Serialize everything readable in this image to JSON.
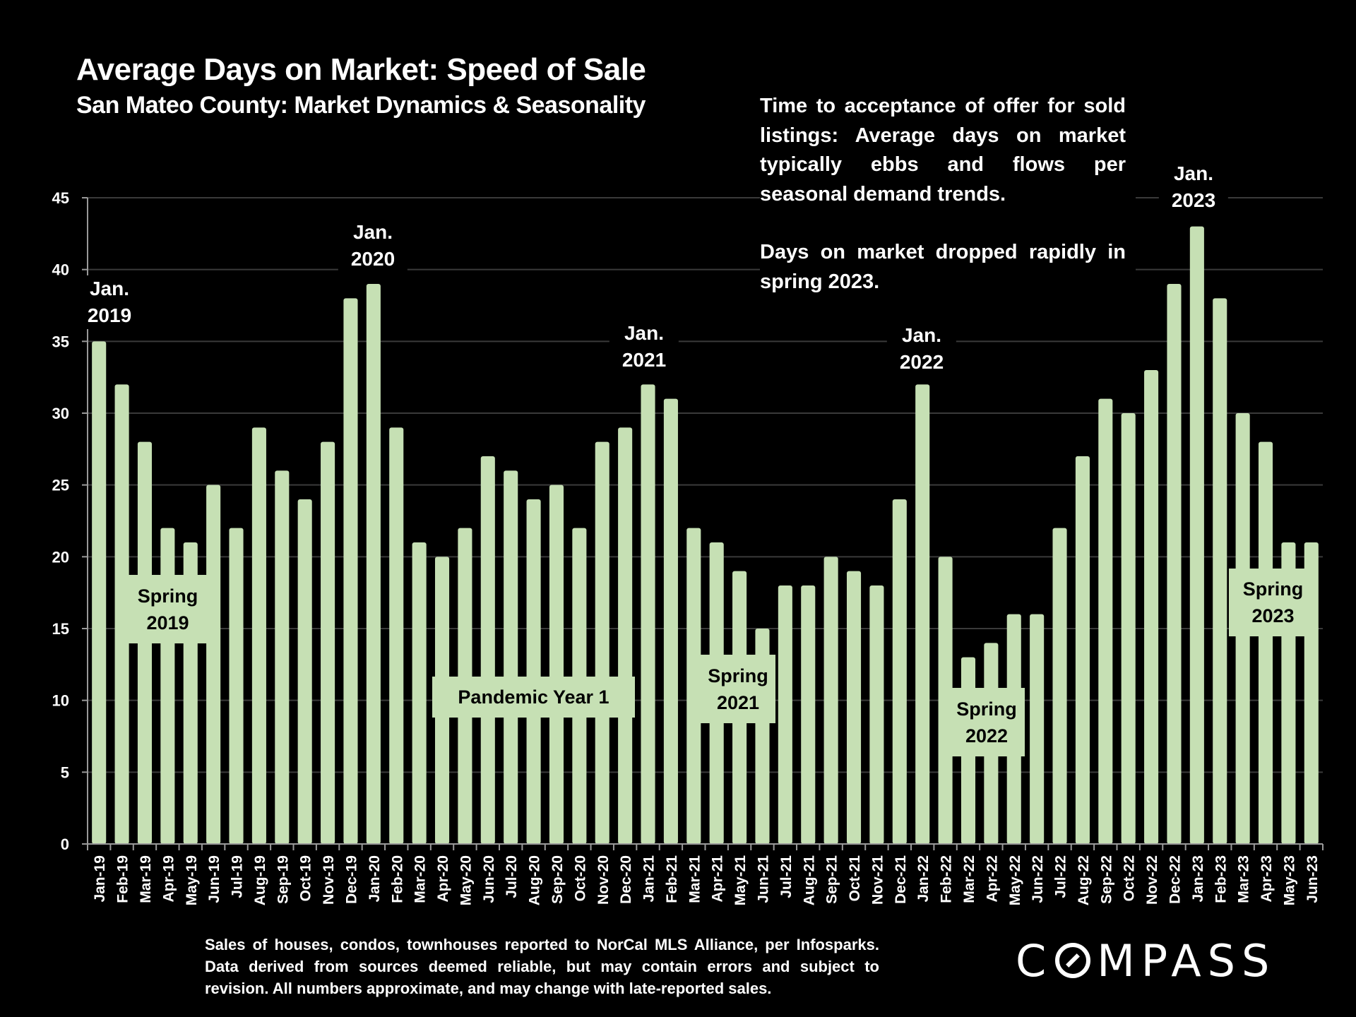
{
  "header": {
    "title": "Average Days on Market:  Speed of Sale",
    "subtitle": "San Mateo County: Market Dynamics & Seasonality"
  },
  "description": {
    "paragraph_1": "Time to acceptance of offer for sold listings: Average days on market typically ebbs and flows per seasonal demand trends.",
    "paragraph_2": "Days on market dropped rapidly in spring 2023."
  },
  "annotations": {
    "jan_2019": {
      "line1": "Jan.",
      "line2": "2019"
    },
    "jan_2020": {
      "line1": "Jan.",
      "line2": "2020"
    },
    "jan_2021": {
      "line1": "Jan.",
      "line2": "2021"
    },
    "jan_2022": {
      "line1": "Jan.",
      "line2": "2022"
    },
    "jan_2023": {
      "line1": "Jan.",
      "line2": "2023"
    },
    "spring_2019": {
      "line1": "Spring",
      "line2": "2019"
    },
    "pandemic_year_1": {
      "line1": "Pandemic Year 1"
    },
    "spring_2021": {
      "line1": "Spring",
      "line2": "2021"
    },
    "spring_2022": {
      "line1": "Spring",
      "line2": "2022"
    },
    "spring_2023": {
      "line1": "Spring",
      "line2": "2023"
    }
  },
  "footer": {
    "line1": "Sales of houses, condos, townhouses reported to NorCal MLS Alliance, per Infosparks.",
    "line2": "Data derived from sources deemed reliable, but may contain errors and subject to",
    "line3": "revision. All numbers approximate, and may change with late-reported sales."
  },
  "logo": {
    "text_before": "C",
    "text_after": "MPASS"
  },
  "colors": {
    "bar": "#c6e0b4",
    "background": "#000000",
    "gridline": "#3a3a3a",
    "axis": "#9a9a9a",
    "text": "#ffffff"
  },
  "chart_data": {
    "type": "bar",
    "title": "Average Days on Market:  Speed of Sale",
    "subtitle": "San Mateo County: Market Dynamics & Seasonality",
    "xlabel": "",
    "ylabel": "",
    "ylim": [
      0,
      45
    ],
    "yticks": [
      0,
      5,
      10,
      15,
      20,
      25,
      30,
      35,
      40,
      45
    ],
    "grid": true,
    "legend": "none",
    "categories": [
      "Jan-19",
      "Feb-19",
      "Mar-19",
      "Apr-19",
      "May-19",
      "Jun-19",
      "Jul-19",
      "Aug-19",
      "Sep-19",
      "Oct-19",
      "Nov-19",
      "Dec-19",
      "Jan-20",
      "Feb-20",
      "Mar-20",
      "Apr-20",
      "May-20",
      "Jun-20",
      "Jul-20",
      "Aug-20",
      "Sep-20",
      "Oct-20",
      "Nov-20",
      "Dec-20",
      "Jan-21",
      "Feb-21",
      "Mar-21",
      "Apr-21",
      "May-21",
      "Jun-21",
      "Jul-21",
      "Aug-21",
      "Sep-21",
      "Oct-21",
      "Nov-21",
      "Dec-21",
      "Jan-22",
      "Feb-22",
      "Mar-22",
      "Apr-22",
      "May-22",
      "Jun-22",
      "Jul-22",
      "Aug-22",
      "Sep-22",
      "Oct-22",
      "Nov-22",
      "Dec-22",
      "Jan-23",
      "Feb-23",
      "Mar-23",
      "Apr-23",
      "May-23",
      "Jun-23"
    ],
    "values": [
      35,
      32,
      28,
      22,
      21,
      25,
      22,
      29,
      26,
      24,
      28,
      38,
      39,
      29,
      21,
      20,
      22,
      27,
      26,
      24,
      25,
      22,
      28,
      29,
      32,
      31,
      22,
      21,
      19,
      15,
      18,
      18,
      20,
      19,
      18,
      24,
      32,
      20,
      13,
      14,
      16,
      16,
      22,
      27,
      31,
      30,
      33,
      39,
      43,
      38,
      30,
      28,
      21,
      21
    ]
  }
}
